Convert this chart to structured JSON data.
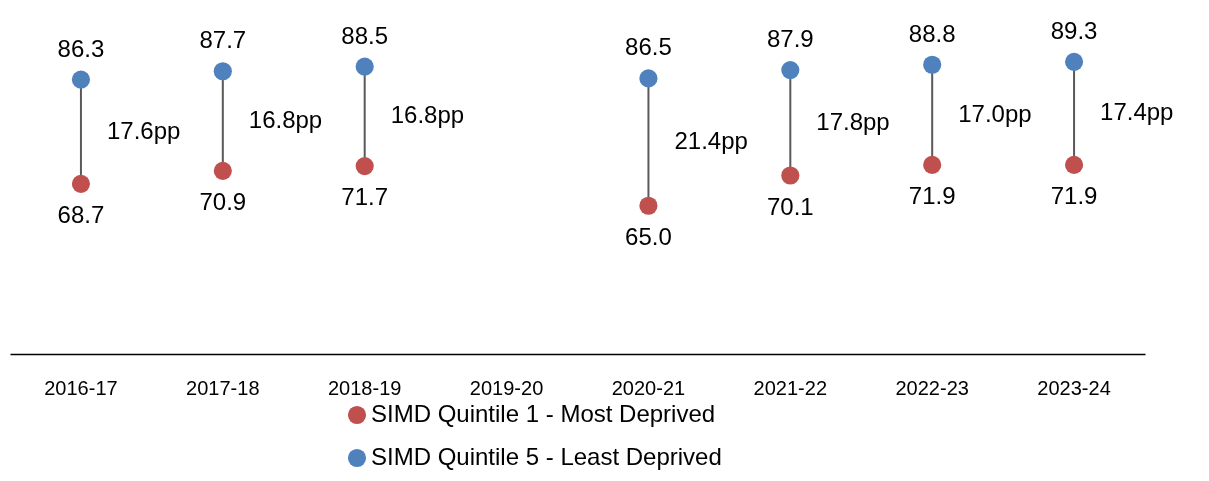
{
  "chart_data": {
    "type": "scatter",
    "categories": [
      "2016-17",
      "2017-18",
      "2018-19",
      "2019-20",
      "2020-21",
      "2021-22",
      "2022-23",
      "2023-24"
    ],
    "tick_labels": "x",
    "legend": "bottom",
    "marker": "circle",
    "series": [
      {
        "name": "SIMD Quintile 1 - Most Deprived",
        "color": "#c0504d",
        "values": [
          68.7,
          70.9,
          71.7,
          null,
          65.0,
          70.1,
          71.9,
          71.9
        ],
        "value_labels": [
          "68.7",
          "70.9",
          "71.7",
          null,
          "65.0",
          "70.1",
          "71.9",
          "71.9"
        ]
      },
      {
        "name": "SIMD Quintile 5 - Least Deprived",
        "color": "#4f81bd",
        "values": [
          86.3,
          87.7,
          88.5,
          null,
          86.5,
          87.9,
          88.8,
          89.3
        ],
        "value_labels": [
          "86.3",
          "87.7",
          "88.5",
          null,
          "86.5",
          "87.9",
          "88.8",
          "89.3"
        ]
      }
    ],
    "annotations": [
      "17.6pp",
      "16.8pp",
      "16.8pp",
      "21.4pp",
      "17.8pp",
      "17.0pp",
      "17.4pp"
    ]
  }
}
